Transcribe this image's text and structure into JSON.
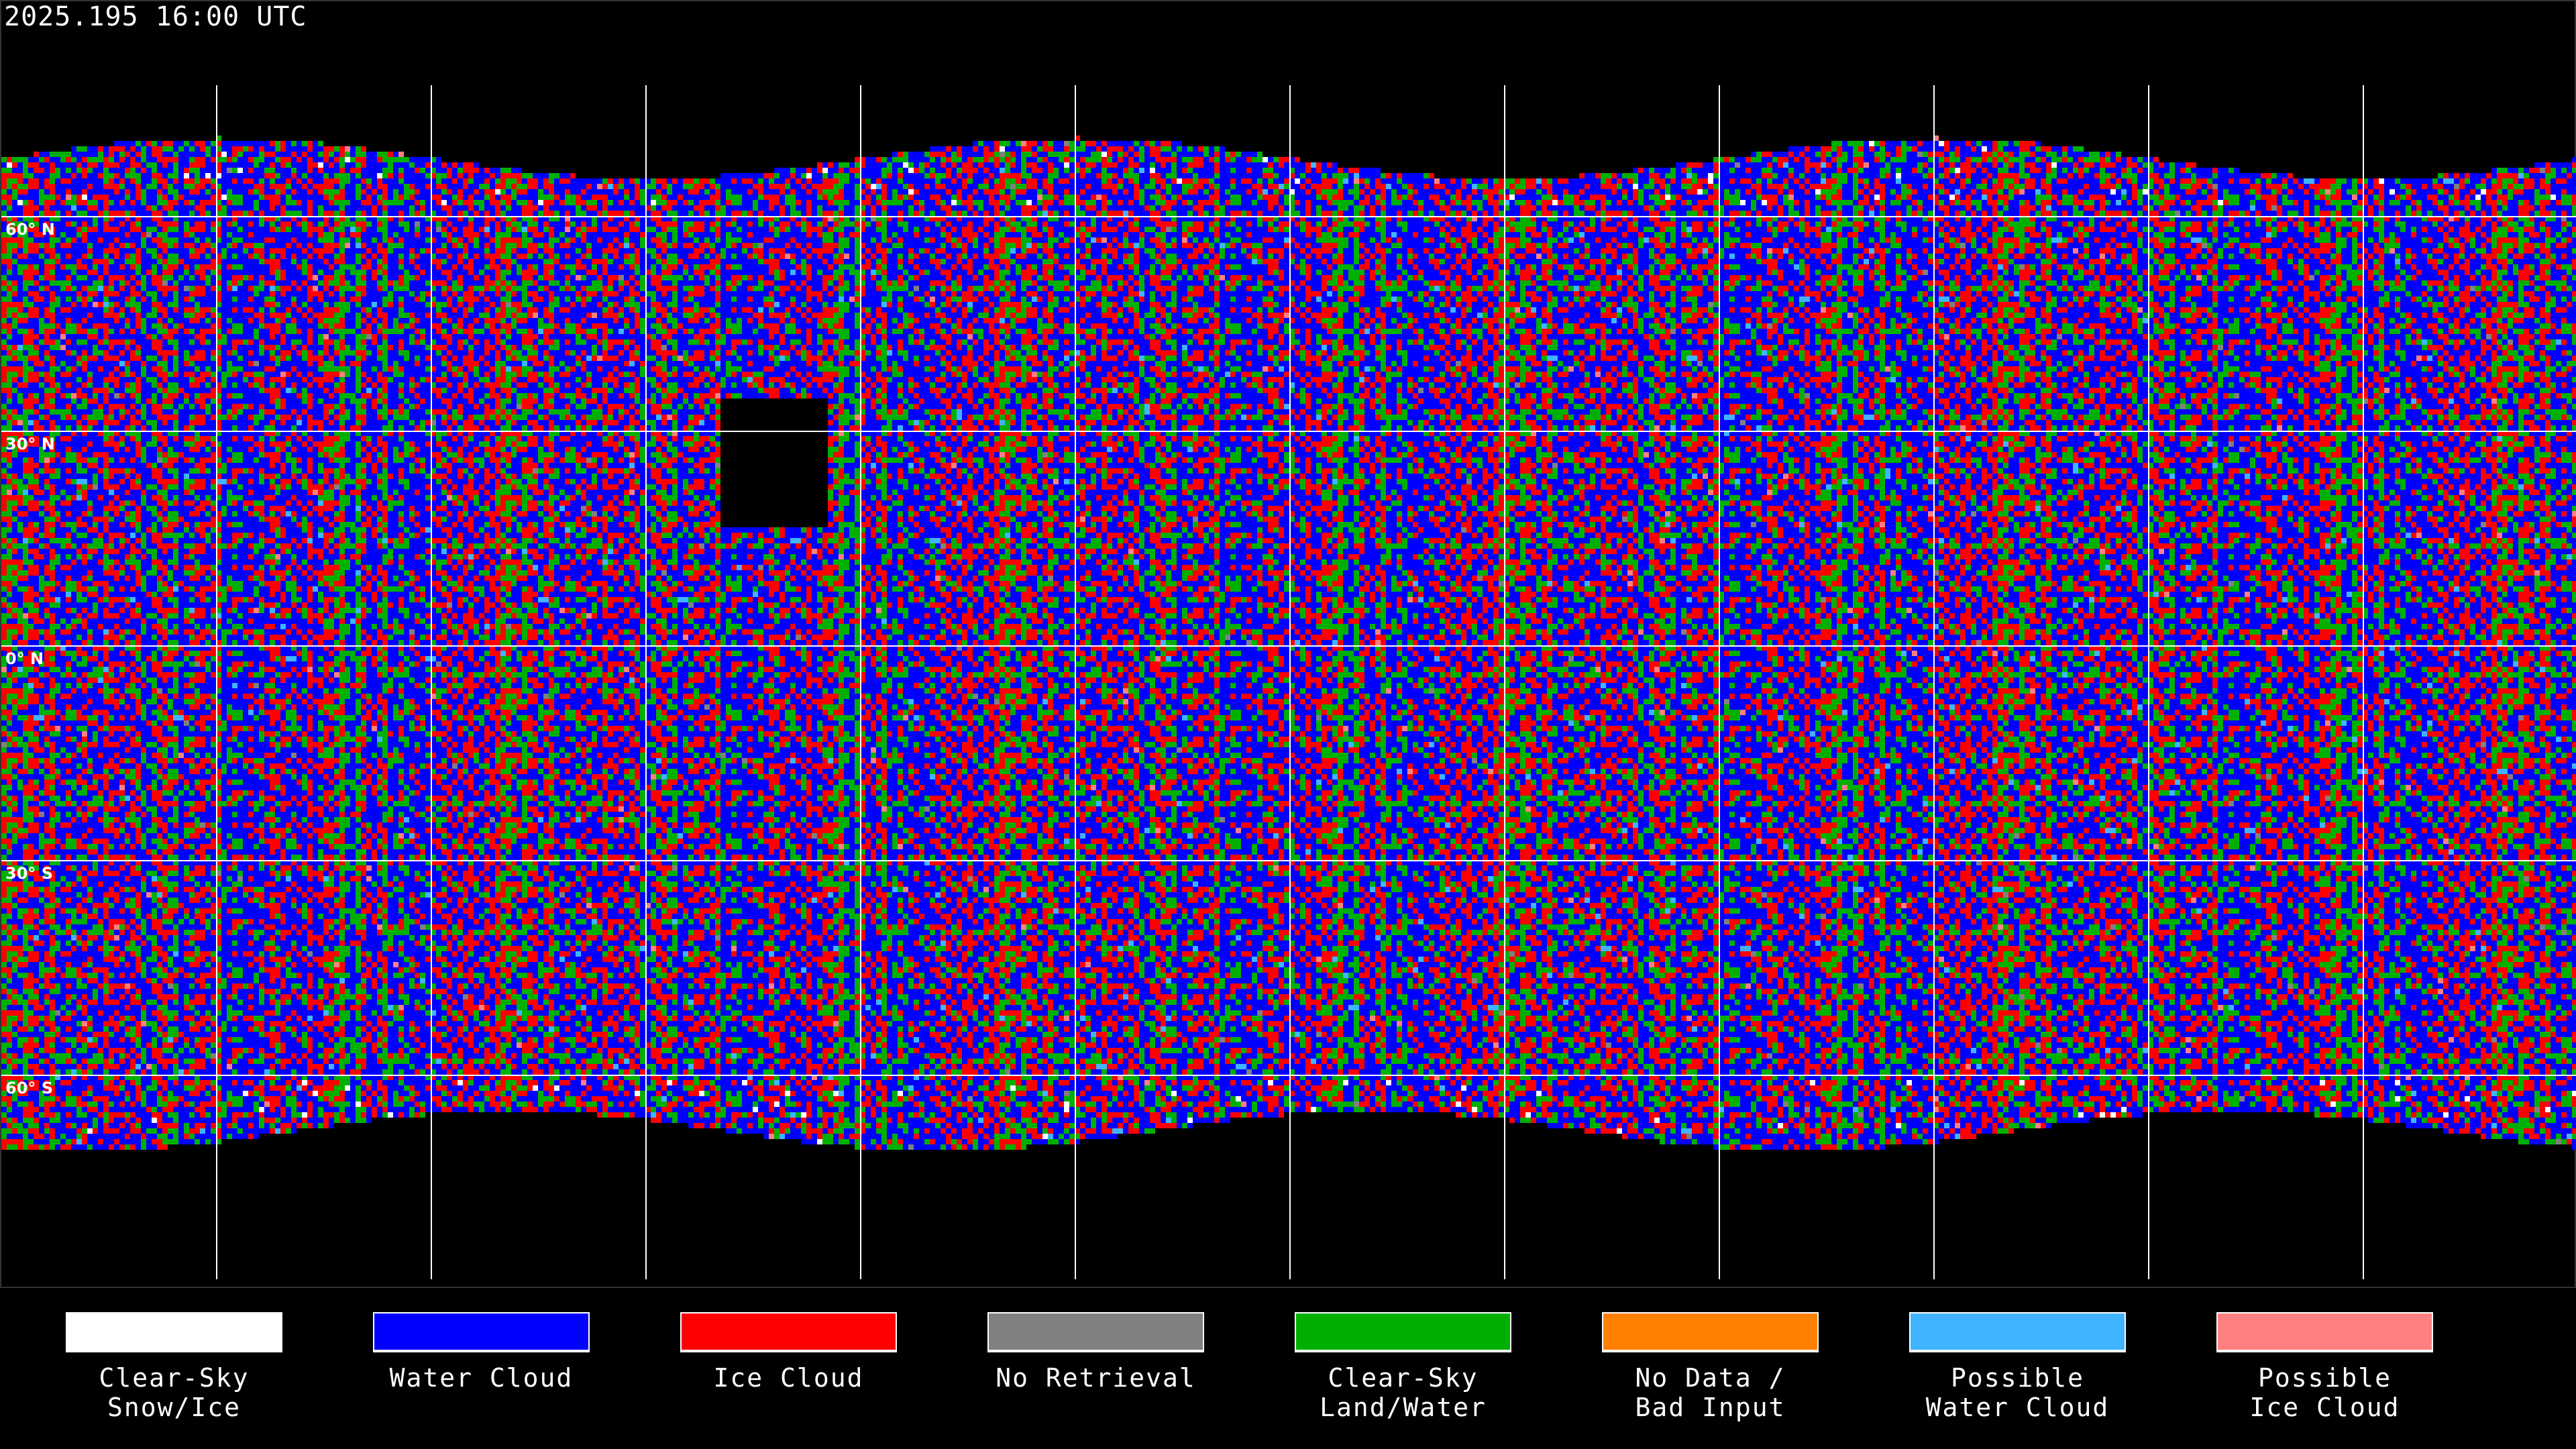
{
  "title": "2025.195 16:00 UTC",
  "map": {
    "lat_labels": [
      "60° N",
      "30° N",
      "0° N",
      "30° S",
      "60° S"
    ],
    "background": "#000000",
    "grid_color": "#ffffff"
  },
  "legend": {
    "items": [
      {
        "line1": "Clear-Sky",
        "line2": "Snow/Ice",
        "color": "#ffffff"
      },
      {
        "line1": "Water Cloud",
        "line2": "",
        "color": "#0000ff"
      },
      {
        "line1": "Ice Cloud",
        "line2": "",
        "color": "#ff0000"
      },
      {
        "line1": "No Retrieval",
        "line2": "",
        "color": "#808080"
      },
      {
        "line1": "Clear-Sky",
        "line2": "Land/Water",
        "color": "#00b000"
      },
      {
        "line1": "No Data /",
        "line2": "Bad Input",
        "color": "#ff8000"
      },
      {
        "line1": "Possible",
        "line2": "Water Cloud",
        "color": "#40b4ff"
      },
      {
        "line1": "Possible",
        "line2": "Ice Cloud",
        "color": "#ff8080"
      }
    ]
  }
}
